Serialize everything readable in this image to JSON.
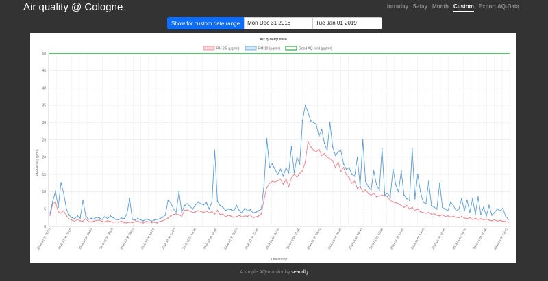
{
  "header": {
    "title": "Air quality @ Cologne",
    "nav": [
      {
        "label": "Intraday",
        "active": false
      },
      {
        "label": "5-day",
        "active": false
      },
      {
        "label": "Month",
        "active": false
      },
      {
        "label": "Custom",
        "active": true
      },
      {
        "label": "Export AQ-Data",
        "active": false
      }
    ]
  },
  "date_range": {
    "button_label": "Show for custom date range",
    "start_value": "Mon Dec 31 2018",
    "end_value": "Tue Jan 01 2019"
  },
  "colors": {
    "pm25": "#e8868f",
    "pm10": "#5b9cd6",
    "limit": "#2eab4a",
    "button": "#0d6efd"
  },
  "chart_data": {
    "type": "line",
    "title": "Air quality data",
    "xlabel": "Timestamp",
    "ylabel": "PM-Value (µg/m³)",
    "ylim": [
      0,
      50
    ],
    "yticks": [
      0,
      5,
      10,
      15,
      20,
      25,
      30,
      35,
      40,
      45,
      50
    ],
    "grid": true,
    "legend": "top",
    "x_tick_labels": [
      "2018-12-31 00:00",
      "2018-12-31 02:00",
      "2018-12-31 04:00",
      "2018-12-31 06:00",
      "2018-12-31 08:00",
      "2018-12-31 10:00",
      "2018-12-31 12:00",
      "2018-12-31 14:15",
      "2018-12-31 16:45",
      "2018-12-31 20:00",
      "2018-12-31 22:45",
      "2019-01-01 00:45",
      "2019-01-01 02:45",
      "2019-01-01 04:45",
      "2019-01-01 06:45",
      "2019-01-01 08:45",
      "2019-01-01 10:45",
      "2019-01-01 12:45",
      "2019-01-01 14:45",
      "2019-01-01 16:45",
      "2019-01-01 18:45",
      "2019-01-01 20:45",
      "2019-01-01 23:45"
    ],
    "series": [
      {
        "name": "PM 2.5 (µg/m³)",
        "color_key": "pm25",
        "values": [
          3.2,
          6.5,
          7.0,
          4.2,
          3.8,
          4.5,
          3.0,
          2.1,
          1.8,
          1.5,
          2.0,
          1.6,
          1.5,
          2.2,
          1.4,
          1.3,
          1.5,
          1.7,
          1.8,
          1.4,
          1.3,
          1.6,
          1.4,
          1.2,
          1.3,
          1.2,
          1.5,
          1.1,
          1.0,
          1.2,
          1.1,
          1.3,
          1.5,
          1.2,
          1.0,
          1.4,
          1.3,
          1.1,
          1.2,
          1.0,
          1.4,
          1.6,
          2.0,
          2.4,
          3.0,
          3.4,
          3.6,
          3.3,
          2.9,
          4.6,
          4.7,
          4.4,
          4.0,
          4.2,
          4.5,
          4.3,
          4.0,
          4.4,
          3.9,
          4.2,
          3.5,
          4.6,
          3.4,
          3.5,
          2.8,
          3.2,
          2.9,
          2.6,
          2.8,
          3.1,
          2.7,
          3.0,
          2.9,
          3.3,
          2.5,
          2.7,
          3.0,
          3.6,
          7.8,
          11.2,
          12.5,
          13.0,
          12.8,
          13.2,
          13.5,
          12.2,
          13.6,
          11.5,
          14.0,
          15.0,
          14.2,
          15.3,
          16.0,
          18.5,
          24.5,
          23.0,
          22.0,
          21.5,
          22.3,
          20.5,
          21.0,
          20.0,
          19.5,
          19.0,
          17.0,
          18.5,
          16.0,
          17.0,
          15.0,
          14.0,
          12.5,
          13.0,
          11.0,
          11.5,
          10.0,
          10.5,
          9.5,
          9.0,
          9.5,
          8.5,
          8.8,
          9.0,
          8.8,
          8.6,
          7.5,
          7.0,
          6.8,
          6.5,
          6.0,
          5.5,
          6.0,
          5.0,
          5.5,
          4.5,
          5.0,
          4.2,
          4.0,
          3.8,
          4.0,
          3.5,
          3.6,
          3.2,
          3.0,
          3.3,
          2.8,
          3.0,
          2.7,
          2.9,
          2.6,
          2.5,
          2.8,
          2.4,
          2.2,
          2.5,
          2.0,
          2.3,
          2.0,
          2.2,
          1.9,
          2.1,
          1.8,
          1.6,
          1.9,
          1.5,
          1.7,
          1.5,
          1.4,
          1.2
        ]
      },
      {
        "name": "PM 10 (µg/m³)",
        "color_key": "pm10",
        "values": [
          3.8,
          7.2,
          10.2,
          5.5,
          12.6,
          9.5,
          5.0,
          3.2,
          2.5,
          2.2,
          3.0,
          2.4,
          7.5,
          3.1,
          2.0,
          2.3,
          2.1,
          2.6,
          2.4,
          2.0,
          2.8,
          2.2,
          3.0,
          2.5,
          2.0,
          1.9,
          2.4,
          2.2,
          3.5,
          8.0,
          2.0,
          1.8,
          2.3,
          1.9,
          1.6,
          2.1,
          1.9,
          1.5,
          1.8,
          2.0,
          2.2,
          2.6,
          3.2,
          7.5,
          6.8,
          5.0,
          4.2,
          10.0,
          4.0,
          6.0,
          6.5,
          5.8,
          5.0,
          6.2,
          7.0,
          6.5,
          6.2,
          6.8,
          5.0,
          7.0,
          22.0,
          7.2,
          6.0,
          5.5,
          4.6,
          5.0,
          4.8,
          4.5,
          6.0,
          4.5,
          3.8,
          5.2,
          4.5,
          4.8,
          3.9,
          4.1,
          4.5,
          5.0,
          12.0,
          25.3,
          17.0,
          18.0,
          16.5,
          15.0,
          16.5,
          14.5,
          17.0,
          15.5,
          23.0,
          15.5,
          20.0,
          18.0,
          30.5,
          35.0,
          33.0,
          30.5,
          30.0,
          29.5,
          26.0,
          28.0,
          24.0,
          22.0,
          30.0,
          23.0,
          20.5,
          21.5,
          22.0,
          18.0,
          16.5,
          17.0,
          15.0,
          14.5,
          20.0,
          11.5,
          25.0,
          13.0,
          11.5,
          10.5,
          16.0,
          12.0,
          10.5,
          22.5,
          9.0,
          9.5,
          8.5,
          16.5,
          12.0,
          10.0,
          16.0,
          9.0,
          8.0,
          7.5,
          22.5,
          8.0,
          15.0,
          10.0,
          7.0,
          6.5,
          13.0,
          6.0,
          5.5,
          5.0,
          12.5,
          5.5,
          5.0,
          4.5,
          7.0,
          6.0,
          4.5,
          5.0,
          8.0,
          4.5,
          7.5,
          4.0,
          8.0,
          3.5,
          8.5,
          3.5,
          5.5,
          3.0,
          6.0,
          3.2,
          4.0,
          5.0,
          4.5,
          5.2,
          3.0,
          2.0
        ]
      },
      {
        "name": "Good AQ-limit (µg/m³)",
        "color_key": "limit",
        "constant": 50
      }
    ]
  },
  "footer": {
    "prefix": "A simple AQ-monitor by",
    "author": "seandlg"
  }
}
